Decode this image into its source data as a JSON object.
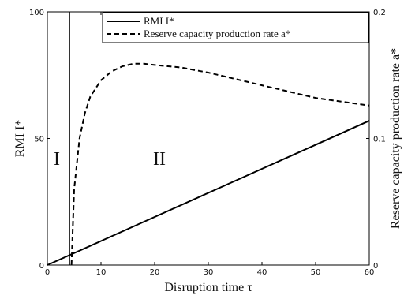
{
  "chart_data": {
    "type": "line",
    "x_axis": {
      "label": "Disruption time τ",
      "range": [
        0,
        60
      ],
      "ticks": [
        "0",
        "10",
        "20",
        "30",
        "40",
        "50",
        "60"
      ]
    },
    "y_axis_left": {
      "label": "RMI I*",
      "range": [
        0,
        100
      ],
      "ticks": [
        "0",
        "50",
        "100"
      ]
    },
    "y_axis_right": {
      "label": "Reserve capacity production rate a*",
      "range": [
        0,
        0.2
      ],
      "ticks": [
        "0",
        "0.1",
        "0.2"
      ]
    },
    "series": [
      {
        "name": "RMI I*",
        "axis": "left",
        "style": "solid",
        "x": [
          0,
          10,
          20,
          30,
          40,
          50,
          60
        ],
        "y": [
          0,
          9.5,
          19,
          28.5,
          38,
          47.5,
          57
        ]
      },
      {
        "name": "Reserve capacity production rate a*",
        "axis": "right",
        "style": "dashed",
        "x": [
          4.5,
          5,
          6,
          7,
          8,
          10,
          12,
          14,
          16,
          18,
          20,
          25,
          30,
          35,
          40,
          45,
          50,
          55,
          60
        ],
        "y": [
          0,
          0.06,
          0.1,
          0.12,
          0.133,
          0.146,
          0.153,
          0.157,
          0.159,
          0.159,
          0.158,
          0.156,
          0.152,
          0.147,
          0.142,
          0.137,
          0.132,
          0.129,
          0.126
        ]
      }
    ],
    "vertical_line_x": 4.2,
    "region_labels": [
      "I",
      "II"
    ],
    "legend": {
      "placement": "top-right",
      "entries": [
        "RMI I*",
        "Reserve capacity production rate a*"
      ]
    },
    "grid": false
  }
}
